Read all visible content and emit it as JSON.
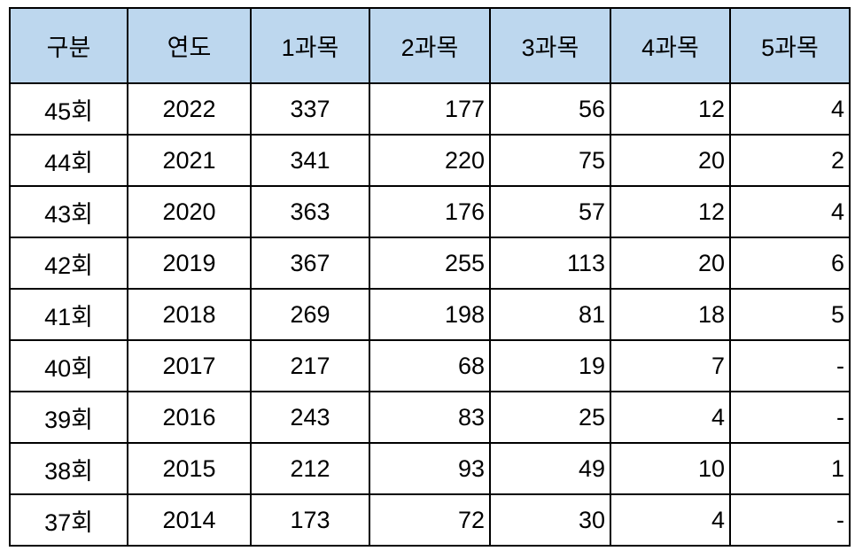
{
  "table": {
    "headers": [
      "구분",
      "연도",
      "1과목",
      "2과목",
      "3과목",
      "4과목",
      "5과목"
    ],
    "rows": [
      [
        "45회",
        "2022",
        "337",
        "177",
        "56",
        "12",
        "4"
      ],
      [
        "44회",
        "2021",
        "341",
        "220",
        "75",
        "20",
        "2"
      ],
      [
        "43회",
        "2020",
        "363",
        "176",
        "57",
        "12",
        "4"
      ],
      [
        "42회",
        "2019",
        "367",
        "255",
        "113",
        "20",
        "6"
      ],
      [
        "41회",
        "2018",
        "269",
        "198",
        "81",
        "18",
        "5"
      ],
      [
        "40회",
        "2017",
        "217",
        "68",
        "19",
        "7",
        "-"
      ],
      [
        "39회",
        "2016",
        "243",
        "83",
        "25",
        "4",
        "-"
      ],
      [
        "38회",
        "2015",
        "212",
        "93",
        "49",
        "10",
        "1"
      ],
      [
        "37회",
        "2014",
        "173",
        "72",
        "30",
        "4",
        "-"
      ]
    ],
    "colors": {
      "header_bg": "#BDD7EE",
      "border": "#000000",
      "text": "#000000",
      "body_bg": "#FFFFFF"
    }
  }
}
